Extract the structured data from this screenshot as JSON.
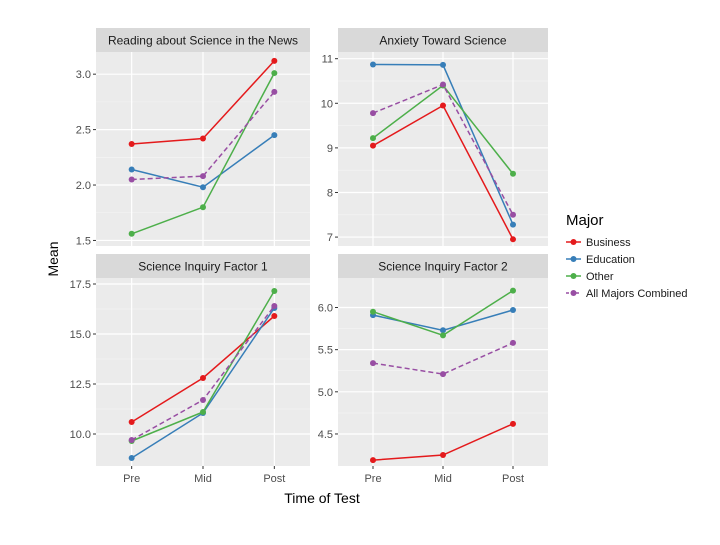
{
  "chart_data": {
    "type": "line",
    "layout": "faceted 2x2",
    "xlabel": "Time of Test",
    "ylabel": "Mean",
    "categories": [
      "Pre",
      "Mid",
      "Post"
    ],
    "legend": {
      "title": "Major",
      "position": "right",
      "entries": [
        {
          "name": "Business",
          "color": "#e41a1c",
          "dash": false
        },
        {
          "name": "Education",
          "color": "#377eb8",
          "dash": false
        },
        {
          "name": "Other",
          "color": "#4daf4a",
          "dash": false
        },
        {
          "name": "All Majors Combined",
          "color": "#984ea3",
          "dash": true
        }
      ]
    },
    "panels": [
      {
        "title": "Reading about Science in the News",
        "ylim": [
          1.45,
          3.2
        ],
        "yticks": [
          1.5,
          2.0,
          2.5,
          3.0
        ],
        "ytick_labels": [
          "1.5",
          "2.0",
          "2.5",
          "3.0"
        ],
        "series": [
          {
            "name": "Business",
            "values": [
              2.37,
              2.42,
              3.12
            ]
          },
          {
            "name": "Education",
            "values": [
              2.14,
              1.98,
              2.45
            ]
          },
          {
            "name": "Other",
            "values": [
              1.56,
              1.8,
              3.01
            ]
          },
          {
            "name": "All Majors Combined",
            "values": [
              2.05,
              2.08,
              2.84
            ]
          }
        ]
      },
      {
        "title": "Anxiety Toward Science",
        "ylim": [
          6.8,
          11.15
        ],
        "yticks": [
          7,
          8,
          9,
          10,
          11
        ],
        "ytick_labels": [
          "7",
          "8",
          "9",
          "10",
          "11"
        ],
        "series": [
          {
            "name": "Business",
            "values": [
              9.05,
              9.95,
              6.95
            ]
          },
          {
            "name": "Education",
            "values": [
              10.87,
              10.86,
              7.28
            ]
          },
          {
            "name": "Other",
            "values": [
              9.22,
              10.4,
              8.42
            ]
          },
          {
            "name": "All Majors Combined",
            "values": [
              9.78,
              10.42,
              7.5
            ]
          }
        ]
      },
      {
        "title": "Science Inquiry Factor 1",
        "ylim": [
          8.4,
          17.8
        ],
        "yticks": [
          10.0,
          12.5,
          15.0,
          17.5
        ],
        "ytick_labels": [
          "10.0",
          "12.5",
          "15.0",
          "17.5"
        ],
        "series": [
          {
            "name": "Business",
            "values": [
              10.6,
              12.8,
              15.9
            ]
          },
          {
            "name": "Education",
            "values": [
              8.8,
              11.05,
              16.3
            ]
          },
          {
            "name": "Other",
            "values": [
              9.65,
              11.1,
              17.15
            ]
          },
          {
            "name": "All Majors Combined",
            "values": [
              9.7,
              11.7,
              16.4
            ]
          }
        ]
      },
      {
        "title": "Science Inquiry Factor 2",
        "ylim": [
          4.12,
          6.35
        ],
        "yticks": [
          4.5,
          5.0,
          5.5,
          6.0
        ],
        "ytick_labels": [
          "4.5",
          "5.0",
          "5.5",
          "6.0"
        ],
        "series": [
          {
            "name": "Business",
            "values": [
              4.19,
              4.25,
              4.62
            ]
          },
          {
            "name": "Education",
            "values": [
              5.91,
              5.73,
              5.97
            ]
          },
          {
            "name": "Other",
            "values": [
              5.95,
              5.67,
              6.2
            ]
          },
          {
            "name": "All Majors Combined",
            "values": [
              5.34,
              5.21,
              5.58
            ]
          }
        ]
      }
    ]
  }
}
